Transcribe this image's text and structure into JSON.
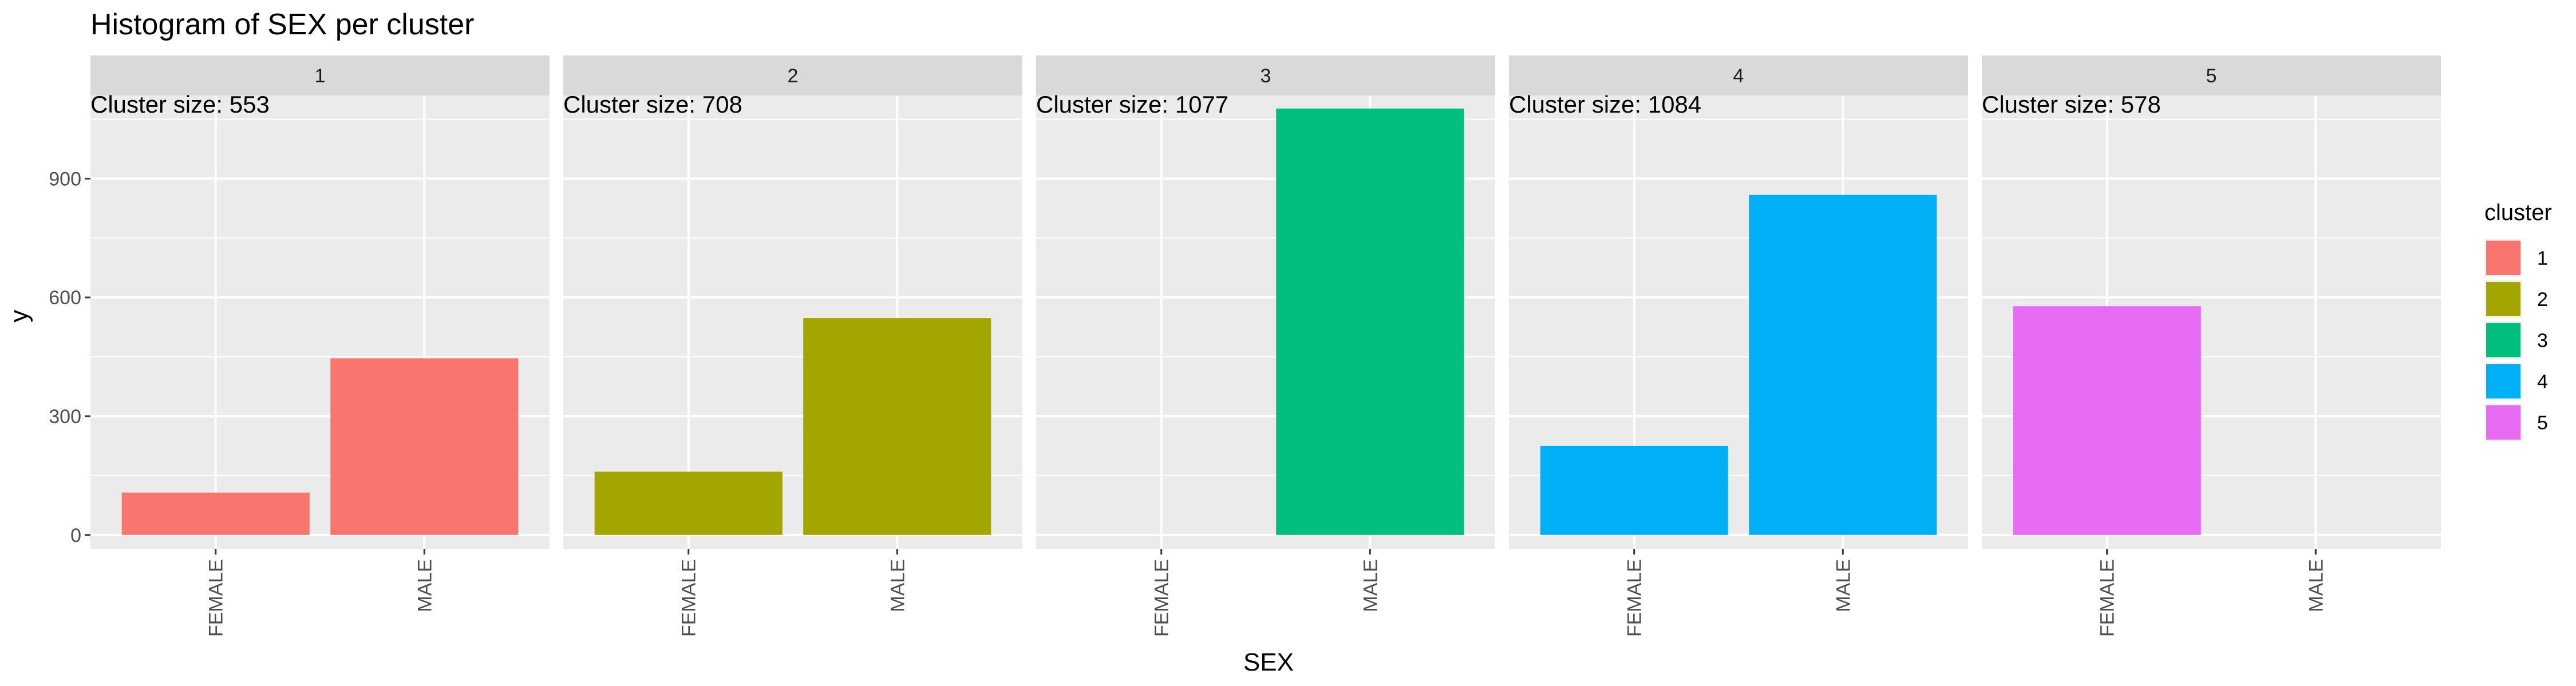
{
  "chart_data": {
    "type": "bar",
    "title": "Histogram of SEX per cluster",
    "xlabel": "SEX",
    "ylabel": "y",
    "ylim": [
      -35,
      1110
    ],
    "yticks": [
      "0",
      "300",
      "600",
      "900"
    ],
    "categories": [
      "FEMALE",
      "MALE"
    ],
    "grid": true,
    "legend": {
      "title": "cluster",
      "position": "right",
      "entries": [
        "1",
        "2",
        "3",
        "4",
        "5"
      ]
    },
    "facets": [
      {
        "label": "1",
        "annotation": "Cluster size: 553",
        "color": "#F8766D",
        "values": [
          107,
          446
        ]
      },
      {
        "label": "2",
        "annotation": "Cluster size: 708",
        "color": "#A3A500",
        "values": [
          160,
          548
        ]
      },
      {
        "label": "3",
        "annotation": "Cluster size: 1077",
        "color": "#00BF7D",
        "values": [
          0,
          1077
        ]
      },
      {
        "label": "4",
        "annotation": "Cluster size: 1084",
        "color": "#00B0F6",
        "values": [
          225,
          859
        ]
      },
      {
        "label": "5",
        "annotation": "Cluster size: 578",
        "color": "#E76BF3",
        "values": [
          578,
          0
        ]
      }
    ]
  }
}
